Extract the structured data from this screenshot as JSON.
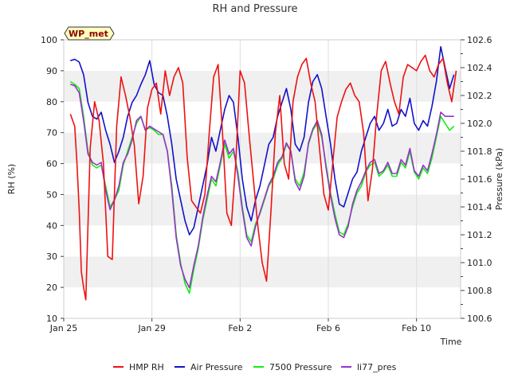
{
  "chart_data": {
    "type": "line",
    "title": "RH and Pressure",
    "xlabel": "Time",
    "ylabel_left": "RH (%)",
    "ylabel_right": "Pressure (kPa)",
    "badge": "WP_met",
    "x_ticks": [
      "Jan 25",
      "Jan 29",
      "Feb 2",
      "Feb 6",
      "Feb 10"
    ],
    "x_range_days": [
      0,
      18
    ],
    "ylim_left": [
      10,
      100
    ],
    "yticks_left": [
      10,
      20,
      30,
      40,
      50,
      60,
      70,
      80,
      90,
      100
    ],
    "ylim_right": [
      100.6,
      102.6
    ],
    "yticks_right": [
      "100.6",
      "100.8",
      "101.0",
      "101.2",
      "101.4",
      "101.6",
      "101.8",
      "102.0",
      "102.2",
      "102.4",
      "102.6"
    ],
    "grid": "horizontal bands",
    "legend_position": "bottom",
    "series": [
      {
        "name": "HMP RH",
        "axis": "left",
        "color": "#ee1111",
        "x": [
          0.3,
          0.4,
          0.5,
          0.6,
          0.7,
          0.8,
          0.9,
          1.0,
          1.2,
          1.4,
          1.6,
          1.8,
          2.0,
          2.2,
          2.4,
          2.6,
          2.8,
          3.0,
          3.2,
          3.4,
          3.6,
          3.8,
          4.0,
          4.2,
          4.4,
          4.6,
          4.8,
          5.0,
          5.2,
          5.4,
          5.6,
          5.8,
          6.0,
          6.2,
          6.4,
          6.6,
          6.8,
          7.0,
          7.2,
          7.4,
          7.6,
          7.8,
          8.0,
          8.2,
          8.4,
          8.6,
          8.8,
          9.0,
          9.2,
          9.4,
          9.6,
          9.8,
          10.0,
          10.2,
          10.4,
          10.6,
          10.8,
          11.0,
          11.2,
          11.4,
          11.6,
          11.8,
          12.0,
          12.2,
          12.4,
          12.6,
          12.8,
          13.0,
          13.2,
          13.4,
          13.6,
          13.8,
          14.0,
          14.2,
          14.4,
          14.6,
          14.8,
          15.0,
          15.2,
          15.4,
          15.6,
          15.8,
          16.0,
          16.2,
          16.4,
          16.6,
          16.8,
          17.0,
          17.2,
          17.4,
          17.6,
          17.8
        ],
        "values": [
          76,
          74,
          72,
          60,
          45,
          25,
          20,
          16,
          65,
          80,
          74,
          60,
          30,
          29,
          72,
          88,
          82,
          75,
          66,
          47,
          56,
          78,
          84,
          86,
          76,
          90,
          82,
          88,
          91,
          86,
          62,
          48,
          46,
          44,
          50,
          70,
          88,
          92,
          70,
          44,
          40,
          60,
          90,
          86,
          70,
          55,
          40,
          28,
          22,
          45,
          70,
          82,
          60,
          55,
          80,
          88,
          92,
          94,
          86,
          80,
          65,
          50,
          45,
          60,
          75,
          80,
          84,
          86,
          82,
          80,
          70,
          48,
          58,
          76,
          90,
          93,
          86,
          80,
          76,
          88,
          92,
          91,
          90,
          93,
          95,
          90,
          88,
          92,
          94,
          86,
          80,
          90
        ],
        "x2": [],
        "values2": []
      },
      {
        "name": "Air Pressure",
        "axis": "right",
        "color": "#1111cc",
        "x": [
          0.3,
          0.5,
          0.7,
          0.9,
          1.1,
          1.3,
          1.5,
          1.7,
          1.9,
          2.1,
          2.3,
          2.5,
          2.7,
          2.9,
          3.1,
          3.3,
          3.5,
          3.7,
          3.9,
          4.1,
          4.3,
          4.5,
          4.7,
          4.9,
          5.1,
          5.3,
          5.5,
          5.7,
          5.9,
          6.1,
          6.3,
          6.5,
          6.7,
          6.9,
          7.1,
          7.3,
          7.5,
          7.7,
          7.9,
          8.1,
          8.3,
          8.5,
          8.7,
          8.9,
          9.1,
          9.3,
          9.5,
          9.7,
          9.9,
          10.1,
          10.3,
          10.5,
          10.7,
          10.9,
          11.1,
          11.3,
          11.5,
          11.7,
          11.9,
          12.1,
          12.3,
          12.5,
          12.7,
          12.9,
          13.1,
          13.3,
          13.5,
          13.7,
          13.9,
          14.1,
          14.3,
          14.5,
          14.7,
          14.9,
          15.1,
          15.3,
          15.5,
          15.7,
          15.9,
          16.1,
          16.3,
          16.5,
          16.7,
          16.9,
          17.1,
          17.3,
          17.5,
          17.7
        ],
        "values": [
          102.45,
          102.46,
          102.44,
          102.35,
          102.15,
          102.05,
          102.03,
          102.08,
          101.95,
          101.85,
          101.72,
          101.8,
          101.9,
          102.05,
          102.15,
          102.2,
          102.28,
          102.35,
          102.45,
          102.28,
          102.22,
          102.2,
          102.05,
          101.85,
          101.6,
          101.45,
          101.3,
          101.2,
          101.25,
          101.4,
          101.55,
          101.7,
          101.9,
          101.8,
          101.95,
          102.1,
          102.2,
          102.15,
          101.9,
          101.6,
          101.4,
          101.3,
          101.45,
          101.55,
          101.7,
          101.85,
          101.9,
          102.05,
          102.15,
          102.25,
          102.1,
          101.85,
          101.8,
          101.9,
          102.15,
          102.3,
          102.35,
          102.25,
          102.05,
          101.85,
          101.6,
          101.42,
          101.4,
          101.5,
          101.6,
          101.65,
          101.8,
          101.9,
          102.0,
          102.05,
          101.95,
          102.0,
          102.1,
          101.98,
          102.0,
          102.1,
          102.05,
          102.18,
          102.0,
          101.95,
          102.02,
          101.98,
          102.12,
          102.3,
          102.55,
          102.4,
          102.25,
          102.35
        ],
        "x2": [],
        "values2": []
      },
      {
        "name": "7500 Pressure",
        "axis": "right",
        "color": "#11ee11",
        "x": [
          0.3,
          0.5,
          0.7,
          0.9,
          1.1,
          1.3,
          1.5,
          1.7,
          1.9,
          2.1,
          2.3,
          2.5,
          2.7,
          2.9,
          3.1,
          3.3,
          3.5,
          3.7,
          3.9,
          4.1,
          4.3,
          4.5,
          4.7,
          4.9,
          5.1,
          5.3,
          5.5,
          5.7,
          5.9,
          6.1,
          6.3,
          6.5,
          6.7,
          6.9,
          7.1,
          7.3,
          7.5,
          7.7,
          7.9,
          8.1,
          8.3,
          8.5,
          8.7,
          8.9,
          9.1,
          9.3,
          9.5,
          9.7,
          9.9,
          10.1,
          10.3,
          10.5,
          10.7,
          10.9,
          11.1,
          11.3,
          11.5,
          11.7,
          11.9,
          12.1,
          12.3,
          12.5,
          12.7,
          12.9,
          13.1,
          13.3,
          13.5,
          13.7,
          13.9,
          14.1,
          14.3,
          14.5,
          14.7,
          14.9,
          15.1,
          15.3,
          15.5,
          15.7,
          15.9,
          16.1,
          16.3,
          16.5,
          16.7,
          16.9,
          17.1,
          17.3,
          17.5,
          17.7
        ],
        "values": [
          102.3,
          102.28,
          102.25,
          102.05,
          101.8,
          101.7,
          101.68,
          101.7,
          101.55,
          101.4,
          101.45,
          101.52,
          101.7,
          101.8,
          101.9,
          102.0,
          102.05,
          101.95,
          101.97,
          101.95,
          101.92,
          101.92,
          101.8,
          101.55,
          101.2,
          101.0,
          100.85,
          100.78,
          100.95,
          101.1,
          101.3,
          101.45,
          101.6,
          101.55,
          101.7,
          101.85,
          101.75,
          101.8,
          101.65,
          101.4,
          101.2,
          101.15,
          101.28,
          101.35,
          101.45,
          101.55,
          101.6,
          101.7,
          101.75,
          101.85,
          101.8,
          101.6,
          101.55,
          101.65,
          101.85,
          101.95,
          102.0,
          101.9,
          101.7,
          101.5,
          101.35,
          101.22,
          101.2,
          101.28,
          101.4,
          101.5,
          101.55,
          101.65,
          101.7,
          101.72,
          101.62,
          101.65,
          101.7,
          101.62,
          101.62,
          101.72,
          101.68,
          101.8,
          101.65,
          101.6,
          101.68,
          101.64,
          101.75,
          101.9,
          102.05,
          102.0,
          101.95,
          101.98
        ],
        "x2": [],
        "values2": []
      },
      {
        "name": "li77_pres",
        "axis": "right",
        "color": "#9932cc",
        "x": [
          0.3,
          0.5,
          0.7,
          0.9,
          1.1,
          1.3,
          1.5,
          1.7,
          1.9,
          2.1,
          2.3,
          2.5,
          2.7,
          2.9,
          3.1,
          3.3,
          3.5,
          3.7,
          3.9,
          4.1,
          4.3,
          4.5,
          4.7,
          4.9,
          5.1,
          5.3,
          5.5,
          5.7,
          5.9,
          6.1,
          6.3,
          6.5,
          6.7,
          6.9,
          7.1,
          7.3,
          7.5,
          7.7,
          7.9,
          8.1,
          8.3,
          8.5,
          8.7,
          8.9,
          9.1,
          9.3,
          9.5,
          9.7,
          9.9,
          10.1,
          10.3,
          10.5,
          10.7,
          10.9,
          11.1,
          11.3,
          11.5,
          11.7,
          11.9,
          12.1,
          12.3,
          12.5,
          12.7,
          12.9,
          13.1,
          13.3,
          13.5,
          13.7,
          13.9,
          14.1,
          14.3,
          14.5,
          14.7,
          14.9,
          15.1,
          15.3,
          15.5,
          15.7,
          15.9,
          16.1,
          16.3,
          16.5,
          16.7,
          16.9,
          17.1,
          17.3,
          17.5,
          17.7
        ],
        "values": [
          102.28,
          102.27,
          102.22,
          102.02,
          101.78,
          101.72,
          101.7,
          101.72,
          101.52,
          101.38,
          101.45,
          101.55,
          101.72,
          101.78,
          101.88,
          102.02,
          102.05,
          101.95,
          101.98,
          101.96,
          101.94,
          101.92,
          101.8,
          101.52,
          101.18,
          100.98,
          100.88,
          100.82,
          100.98,
          101.12,
          101.32,
          101.48,
          101.62,
          101.58,
          101.72,
          101.88,
          101.78,
          101.82,
          101.62,
          101.38,
          101.18,
          101.12,
          101.26,
          101.36,
          101.46,
          101.56,
          101.62,
          101.72,
          101.76,
          101.86,
          101.8,
          101.58,
          101.52,
          101.62,
          101.86,
          101.96,
          102.02,
          101.92,
          101.68,
          101.48,
          101.32,
          101.2,
          101.18,
          101.26,
          101.42,
          101.52,
          101.58,
          101.66,
          101.72,
          101.74,
          101.64,
          101.66,
          101.72,
          101.64,
          101.64,
          101.74,
          101.7,
          101.82,
          101.66,
          101.62,
          101.7,
          101.66,
          101.78,
          101.92,
          102.08,
          102.05,
          102.05,
          102.05
        ],
        "x2": [],
        "values2": []
      }
    ]
  }
}
